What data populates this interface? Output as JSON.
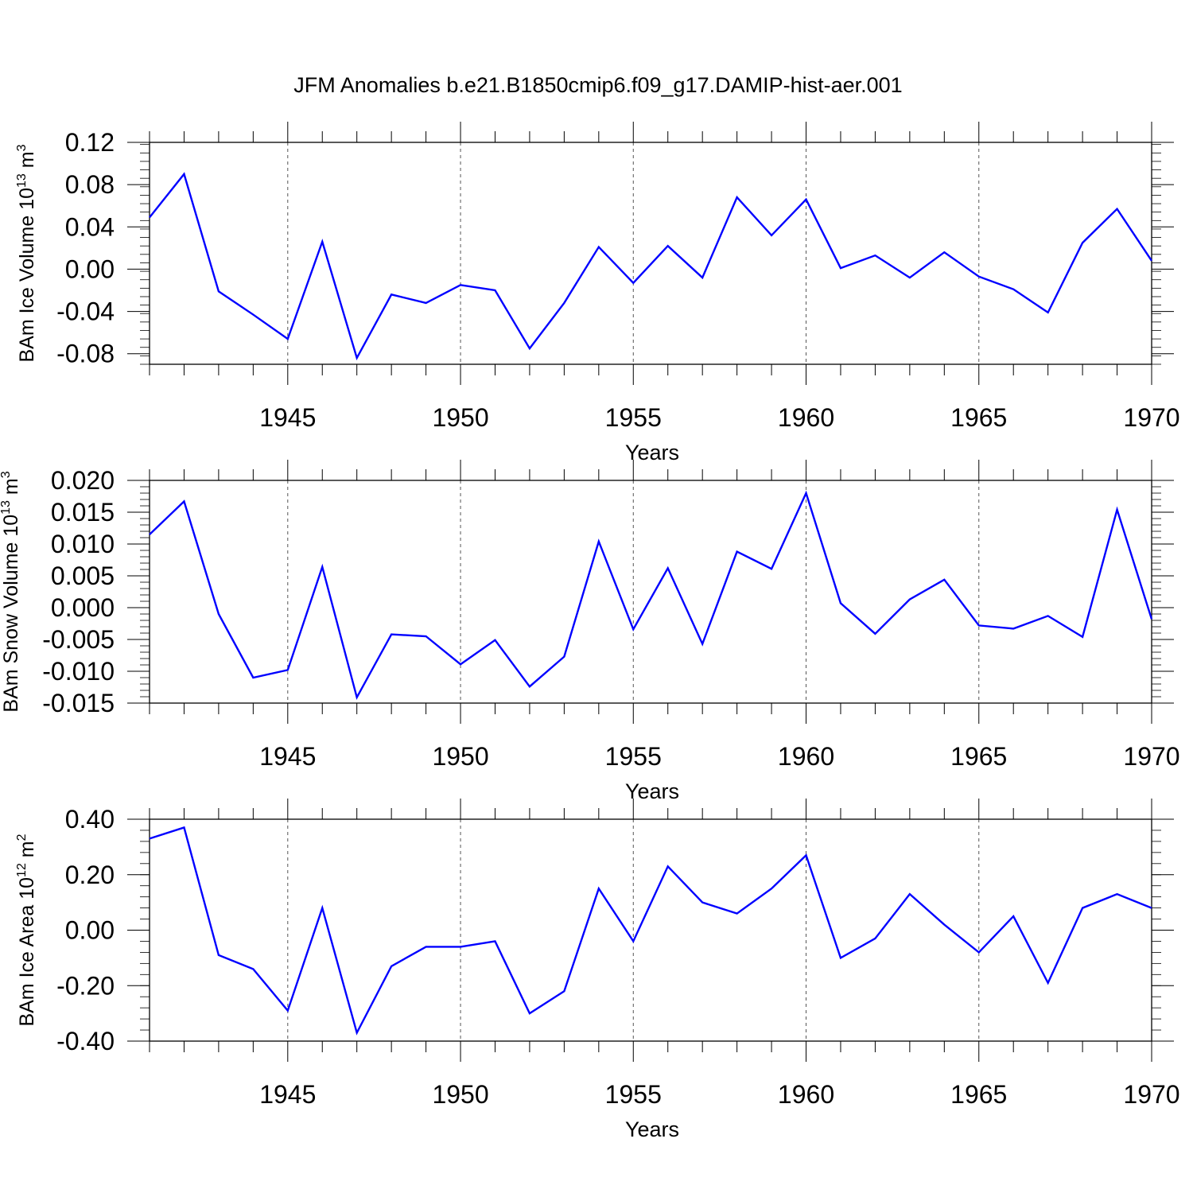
{
  "title": "JFM Anomalies b.e21.B1850cmip6.f09_g17.DAMIP-hist-aer.001",
  "line_color": "#0000ff",
  "chart_data": [
    {
      "type": "line",
      "ylabel": "BAm Ice Volume 10",
      "ylabel_exp": "13",
      "ylabel_unit": " m",
      "ylabel_unit_exp": "3",
      "xlabel": "Years",
      "xlim": [
        1941,
        1970
      ],
      "ylim": [
        -0.09,
        0.12
      ],
      "yticks": [
        -0.08,
        -0.04,
        0.0,
        0.04,
        0.08,
        0.12
      ],
      "ytick_labels": [
        "-0.08",
        "-0.04",
        "0.00",
        "0.04",
        "0.08",
        "0.12"
      ],
      "yminor_step": 0.008,
      "xticks": [
        1945,
        1950,
        1955,
        1960,
        1965,
        1970
      ],
      "xtick_labels": [
        "1945",
        "1950",
        "1955",
        "1960",
        "1965",
        "1970"
      ],
      "x": [
        1941,
        1942,
        1943,
        1944,
        1945,
        1946,
        1947,
        1948,
        1949,
        1950,
        1951,
        1952,
        1953,
        1954,
        1955,
        1956,
        1957,
        1958,
        1959,
        1960,
        1961,
        1962,
        1963,
        1964,
        1965,
        1966,
        1967,
        1968,
        1969,
        1970
      ],
      "values": [
        0.049,
        0.09,
        -0.021,
        -0.043,
        -0.066,
        0.026,
        -0.084,
        -0.024,
        -0.032,
        -0.015,
        -0.02,
        -0.075,
        -0.032,
        0.021,
        -0.013,
        0.022,
        -0.008,
        0.068,
        0.032,
        0.066,
        0.001,
        0.013,
        -0.008,
        0.016,
        -0.007,
        -0.019,
        -0.041,
        0.025,
        0.057,
        0.008
      ]
    },
    {
      "type": "line",
      "ylabel": "BAm Snow Volume 10",
      "ylabel_exp": "13",
      "ylabel_unit": " m",
      "ylabel_unit_exp": "3",
      "xlabel": "Years",
      "xlim": [
        1941,
        1970
      ],
      "ylim": [
        -0.015,
        0.02
      ],
      "yticks": [
        -0.015,
        -0.01,
        -0.005,
        0.0,
        0.005,
        0.01,
        0.015,
        0.02
      ],
      "ytick_labels": [
        "-0.015",
        "-0.010",
        "-0.005",
        "0.000",
        "0.005",
        "0.010",
        "0.015",
        "0.020"
      ],
      "yminor_step": 0.001,
      "xticks": [
        1945,
        1950,
        1955,
        1960,
        1965,
        1970
      ],
      "xtick_labels": [
        "1945",
        "1950",
        "1955",
        "1960",
        "1965",
        "1970"
      ],
      "x": [
        1941,
        1942,
        1943,
        1944,
        1945,
        1946,
        1947,
        1948,
        1949,
        1950,
        1951,
        1952,
        1953,
        1954,
        1955,
        1956,
        1957,
        1958,
        1959,
        1960,
        1961,
        1962,
        1963,
        1964,
        1965,
        1966,
        1967,
        1968,
        1969,
        1970
      ],
      "values": [
        0.0115,
        0.0167,
        -0.001,
        -0.011,
        -0.0098,
        0.0064,
        -0.0141,
        -0.0042,
        -0.0045,
        -0.0089,
        -0.0051,
        -0.0124,
        -0.0077,
        0.0104,
        -0.0034,
        0.0062,
        -0.0057,
        0.0088,
        0.0061,
        0.018,
        0.0007,
        -0.0041,
        0.0013,
        0.0044,
        -0.0028,
        -0.0033,
        -0.0013,
        -0.0046,
        0.0154,
        -0.0018
      ]
    },
    {
      "type": "line",
      "ylabel": "BAm Ice Area 10",
      "ylabel_exp": "12",
      "ylabel_unit": " m",
      "ylabel_unit_exp": "2",
      "xlabel": "Years",
      "xlim": [
        1941,
        1970
      ],
      "ylim": [
        -0.4,
        0.4
      ],
      "yticks": [
        -0.4,
        -0.2,
        0.0,
        0.2,
        0.4
      ],
      "ytick_labels": [
        "-0.40",
        "-0.20",
        "0.00",
        "0.20",
        "0.40"
      ],
      "yminor_step": 0.04,
      "xticks": [
        1945,
        1950,
        1955,
        1960,
        1965,
        1970
      ],
      "xtick_labels": [
        "1945",
        "1950",
        "1955",
        "1960",
        "1965",
        "1970"
      ],
      "x": [
        1941,
        1942,
        1943,
        1944,
        1945,
        1946,
        1947,
        1948,
        1949,
        1950,
        1951,
        1952,
        1953,
        1954,
        1955,
        1956,
        1957,
        1958,
        1959,
        1960,
        1961,
        1962,
        1963,
        1964,
        1965,
        1966,
        1967,
        1968,
        1969,
        1970
      ],
      "values": [
        0.33,
        0.37,
        -0.09,
        -0.14,
        -0.29,
        0.08,
        -0.37,
        -0.13,
        -0.06,
        -0.06,
        -0.04,
        -0.3,
        -0.22,
        0.15,
        -0.04,
        0.23,
        0.1,
        0.06,
        0.15,
        0.27,
        -0.1,
        -0.03,
        0.13,
        0.02,
        -0.08,
        0.05,
        -0.19,
        0.08,
        0.13,
        0.08
      ]
    }
  ]
}
